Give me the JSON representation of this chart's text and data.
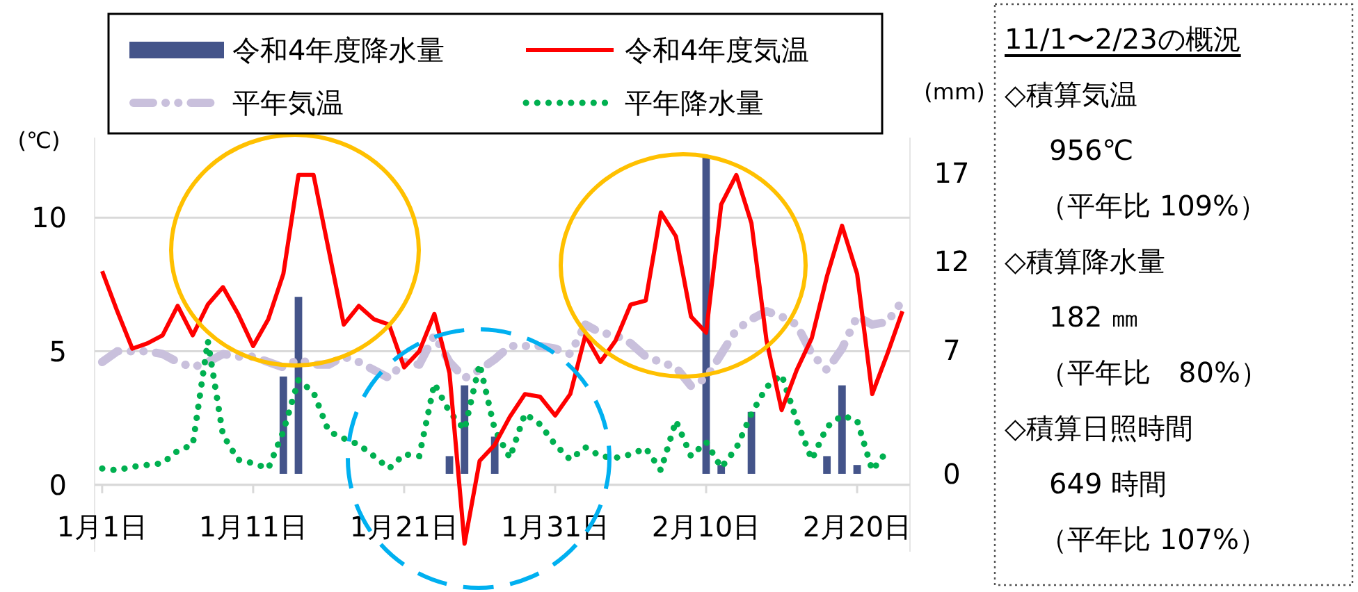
{
  "chart_data": {
    "type": "bar",
    "categories": [
      "1月1日",
      null,
      null,
      null,
      null,
      null,
      null,
      null,
      null,
      null,
      "1月11日",
      null,
      null,
      null,
      null,
      null,
      null,
      null,
      null,
      null,
      "1月21日",
      null,
      null,
      null,
      null,
      null,
      null,
      null,
      null,
      null,
      "1月31日",
      null,
      null,
      null,
      null,
      null,
      null,
      null,
      null,
      null,
      "2月10日",
      null,
      null,
      null,
      null,
      null,
      null,
      null,
      null,
      null,
      "2月20日",
      null,
      null,
      null
    ],
    "series": [
      {
        "name": "令和4年度降水量",
        "axis": "y2",
        "color": "#44548a",
        "values": [
          null,
          null,
          null,
          null,
          null,
          null,
          null,
          null,
          null,
          null,
          null,
          null,
          5.5,
          10.0,
          null,
          null,
          null,
          null,
          null,
          null,
          null,
          null,
          null,
          1.0,
          5.0,
          null,
          2.1,
          null,
          null,
          null,
          null,
          null,
          null,
          null,
          null,
          null,
          null,
          null,
          null,
          null,
          18.0,
          0.5,
          null,
          3.5,
          null,
          null,
          null,
          null,
          1.0,
          5.0,
          0.5,
          null,
          null,
          null
        ]
      },
      {
        "name": "令和4年度気温",
        "type": "line",
        "color": "#ff0000",
        "line_style": "solid",
        "values": [
          8.0,
          6.5,
          5.1,
          5.3,
          5.6,
          6.7,
          5.6,
          6.75,
          7.4,
          6.4,
          5.2,
          6.2,
          7.9,
          11.6,
          11.6,
          8.8,
          6.0,
          6.7,
          6.2,
          6.0,
          4.4,
          5.0,
          6.4,
          4.2,
          -2.2,
          0.9,
          1.5,
          2.55,
          3.4,
          3.3,
          2.6,
          3.4,
          5.6,
          4.6,
          5.4,
          6.75,
          6.9,
          10.2,
          9.3,
          6.3,
          5.7,
          10.5,
          11.6,
          9.8,
          5.4,
          2.8,
          4.3,
          5.5,
          7.8,
          9.7,
          7.9,
          3.4,
          4.9,
          6.5
        ]
      },
      {
        "name": "平年気温",
        "type": "line",
        "color": "#c9c0dc",
        "line_style": "dashed",
        "values": [
          4.6,
          5.0,
          5.0,
          5.0,
          4.9,
          4.6,
          4.4,
          4.6,
          4.9,
          4.8,
          4.8,
          4.6,
          4.4,
          4.7,
          4.5,
          4.5,
          4.8,
          4.6,
          4.3,
          4.0,
          4.6,
          4.5,
          5.6,
          4.6,
          4.0,
          4.3,
          4.7,
          5.2,
          5.2,
          5.2,
          5.1,
          4.9,
          6.0,
          5.7,
          5.6,
          5.3,
          4.8,
          4.6,
          4.4,
          3.7,
          4.0,
          4.9,
          5.8,
          6.2,
          6.5,
          6.3,
          6.0,
          4.9,
          4.3,
          5.1,
          6.3,
          6.0,
          6.1,
          6.9
        ]
      },
      {
        "name": "平年降水量",
        "type": "line",
        "axis": "y2",
        "color": "#00b050",
        "line_style": "dotted",
        "values": [
          0.3,
          0.2,
          0.4,
          0.5,
          0.6,
          1.3,
          1.65,
          7.5,
          2.2,
          0.8,
          0.6,
          0.3,
          2.4,
          5.3,
          4.6,
          2.4,
          2.0,
          1.65,
          1.0,
          0.3,
          1.1,
          1.0,
          5.1,
          3.5,
          2.5,
          6.2,
          2.5,
          0.9,
          3.4,
          2.8,
          1.65,
          0.8,
          1.5,
          1.0,
          0.9,
          1.1,
          1.45,
          0.2,
          3.0,
          1.0,
          1.8,
          0.35,
          1.45,
          3.4,
          4.9,
          5.6,
          3.0,
          0.8,
          2.65,
          3.3,
          3.0,
          0.2,
          1.3,
          null
        ]
      }
    ],
    "ylim": [
      -2.5,
      13
    ],
    "yticks": [
      0,
      5,
      10
    ],
    "y2lim": [
      -4.4,
      19.0
    ],
    "y2ticks": [
      0,
      7,
      12,
      17
    ],
    "ylabel": "(℃)",
    "y2label": "(mm)",
    "grid": "y",
    "legend": "top",
    "annotations": [
      "11/1〜2/23の概況",
      "◇積算気温",
      "956℃",
      "（平年比 109%）",
      "◇積算降水量",
      "182 ㎜",
      "（平年比　80%）",
      "◇積算日照時間",
      "649 時間",
      "（平年比 107%）"
    ]
  }
}
